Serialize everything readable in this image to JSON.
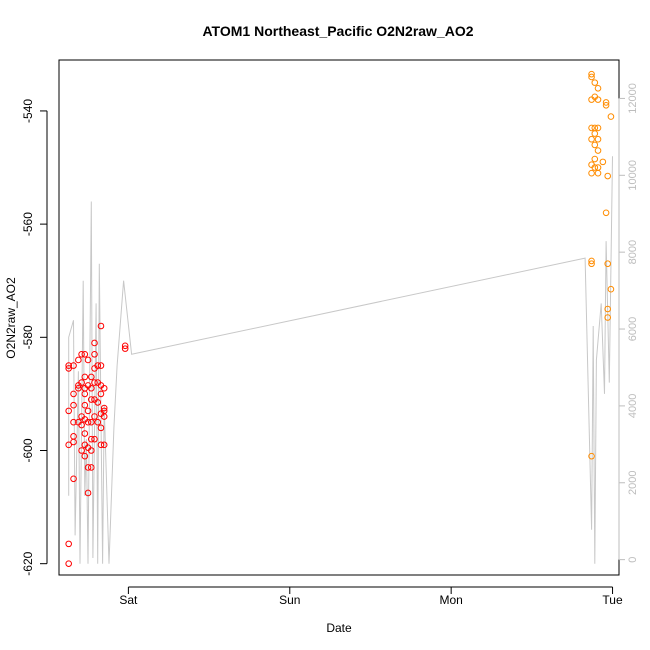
{
  "chart_data": {
    "type": "scatter",
    "title": "ATOM1 Northeast_Pacific O2N2raw_AO2",
    "xlabel": "Date",
    "ylabel": "O2N2raw_AO2",
    "x_ticks": [
      "Sat",
      "Sun",
      "Mon",
      "Tue"
    ],
    "x_tick_days": [
      1,
      2,
      3,
      4
    ],
    "xlim_days": [
      0.57,
      4.04
    ],
    "ylim": [
      -622,
      -531
    ],
    "y_ticks": [
      -620,
      -600,
      -580,
      -560,
      -540
    ],
    "y2lim": [
      -400,
      13000
    ],
    "y2_ticks": [
      0,
      2000,
      4000,
      6000,
      8000,
      10000,
      12000
    ],
    "colors": {
      "series1": "#ff0000",
      "series2": "#ff8c00",
      "line": "#c8c8c8",
      "axis": "#000000",
      "right_axis": "#bdbdbd"
    },
    "series": [
      {
        "color": "#ff0000",
        "points_day_value": [
          [
            0.63,
            -620
          ],
          [
            0.63,
            -616.5
          ],
          [
            0.63,
            -599
          ],
          [
            0.63,
            -593
          ],
          [
            0.63,
            -585.5
          ],
          [
            0.63,
            -585
          ],
          [
            0.66,
            -605
          ],
          [
            0.66,
            -598.5
          ],
          [
            0.66,
            -597.5
          ],
          [
            0.66,
            -595
          ],
          [
            0.66,
            -592
          ],
          [
            0.66,
            -590
          ],
          [
            0.66,
            -585
          ],
          [
            0.69,
            -595
          ],
          [
            0.69,
            -589
          ],
          [
            0.69,
            -588.5
          ],
          [
            0.69,
            -584
          ],
          [
            0.71,
            -600
          ],
          [
            0.71,
            -595.5
          ],
          [
            0.71,
            -594
          ],
          [
            0.71,
            -588
          ],
          [
            0.71,
            -583
          ],
          [
            0.73,
            -601
          ],
          [
            0.73,
            -599
          ],
          [
            0.73,
            -597
          ],
          [
            0.73,
            -594.5
          ],
          [
            0.73,
            -592
          ],
          [
            0.73,
            -590
          ],
          [
            0.73,
            -589
          ],
          [
            0.73,
            -587
          ],
          [
            0.73,
            -583
          ],
          [
            0.75,
            -607.5
          ],
          [
            0.75,
            -603
          ],
          [
            0.75,
            -599.5
          ],
          [
            0.75,
            -595
          ],
          [
            0.75,
            -593
          ],
          [
            0.75,
            -588.5
          ],
          [
            0.75,
            -584
          ],
          [
            0.77,
            -603
          ],
          [
            0.77,
            -600
          ],
          [
            0.77,
            -598
          ],
          [
            0.77,
            -595
          ],
          [
            0.77,
            -591
          ],
          [
            0.77,
            -589
          ],
          [
            0.77,
            -587
          ],
          [
            0.79,
            -598
          ],
          [
            0.79,
            -594
          ],
          [
            0.79,
            -591
          ],
          [
            0.79,
            -588
          ],
          [
            0.79,
            -585.5
          ],
          [
            0.79,
            -583
          ],
          [
            0.79,
            -581
          ],
          [
            0.81,
            -595
          ],
          [
            0.81,
            -591.5
          ],
          [
            0.81,
            -588
          ],
          [
            0.81,
            -585
          ],
          [
            0.83,
            -599
          ],
          [
            0.83,
            -596
          ],
          [
            0.83,
            -593.5
          ],
          [
            0.83,
            -590
          ],
          [
            0.83,
            -588.5
          ],
          [
            0.83,
            -585
          ],
          [
            0.83,
            -578
          ],
          [
            0.85,
            -599
          ],
          [
            0.85,
            -594
          ],
          [
            0.85,
            -593
          ],
          [
            0.85,
            -592.5
          ],
          [
            0.85,
            -589
          ],
          [
            0.98,
            -582
          ],
          [
            0.98,
            -581.5
          ]
        ]
      },
      {
        "color": "#ff8c00",
        "points_day_value": [
          [
            3.87,
            -601
          ],
          [
            3.87,
            -567
          ],
          [
            3.87,
            -566.5
          ],
          [
            3.87,
            -551
          ],
          [
            3.87,
            -549.5
          ],
          [
            3.87,
            -545
          ],
          [
            3.87,
            -543
          ],
          [
            3.87,
            -538
          ],
          [
            3.87,
            -534
          ],
          [
            3.87,
            -533.5
          ],
          [
            3.89,
            -550
          ],
          [
            3.89,
            -548.5
          ],
          [
            3.89,
            -546
          ],
          [
            3.89,
            -544
          ],
          [
            3.89,
            -543
          ],
          [
            3.89,
            -537.5
          ],
          [
            3.89,
            -535
          ],
          [
            3.91,
            -551
          ],
          [
            3.91,
            -550
          ],
          [
            3.91,
            -547
          ],
          [
            3.91,
            -545
          ],
          [
            3.91,
            -543
          ],
          [
            3.91,
            -538
          ],
          [
            3.91,
            -536
          ],
          [
            3.94,
            -549
          ],
          [
            3.96,
            -558
          ],
          [
            3.96,
            -539
          ],
          [
            3.96,
            -538.5
          ],
          [
            3.97,
            -576.5
          ],
          [
            3.97,
            -575
          ],
          [
            3.97,
            -567
          ],
          [
            3.97,
            -551.5
          ],
          [
            3.99,
            -571.5
          ],
          [
            3.99,
            -541
          ]
        ]
      }
    ],
    "line_day_value": [
      [
        0.63,
        -608
      ],
      [
        0.63,
        -580
      ],
      [
        0.66,
        -577
      ],
      [
        0.67,
        -615
      ],
      [
        0.69,
        -586
      ],
      [
        0.7,
        -620
      ],
      [
        0.72,
        -570
      ],
      [
        0.73,
        -608
      ],
      [
        0.74,
        -598
      ],
      [
        0.75,
        -620
      ],
      [
        0.77,
        -556
      ],
      [
        0.78,
        -619
      ],
      [
        0.8,
        -574
      ],
      [
        0.81,
        -620
      ],
      [
        0.82,
        -567
      ],
      [
        0.84,
        -620
      ],
      [
        0.85,
        -592
      ],
      [
        0.88,
        -620
      ],
      [
        0.91,
        -596
      ],
      [
        0.93,
        -585
      ],
      [
        0.97,
        -570
      ],
      [
        1.02,
        -583
      ],
      [
        3.83,
        -566
      ],
      [
        3.87,
        -614
      ],
      [
        3.88,
        -578
      ],
      [
        3.89,
        -620
      ],
      [
        3.9,
        -584
      ],
      [
        3.93,
        -574
      ],
      [
        3.95,
        -590
      ],
      [
        3.96,
        -563
      ],
      [
        3.98,
        -588
      ],
      [
        4.0,
        -548
      ]
    ]
  }
}
